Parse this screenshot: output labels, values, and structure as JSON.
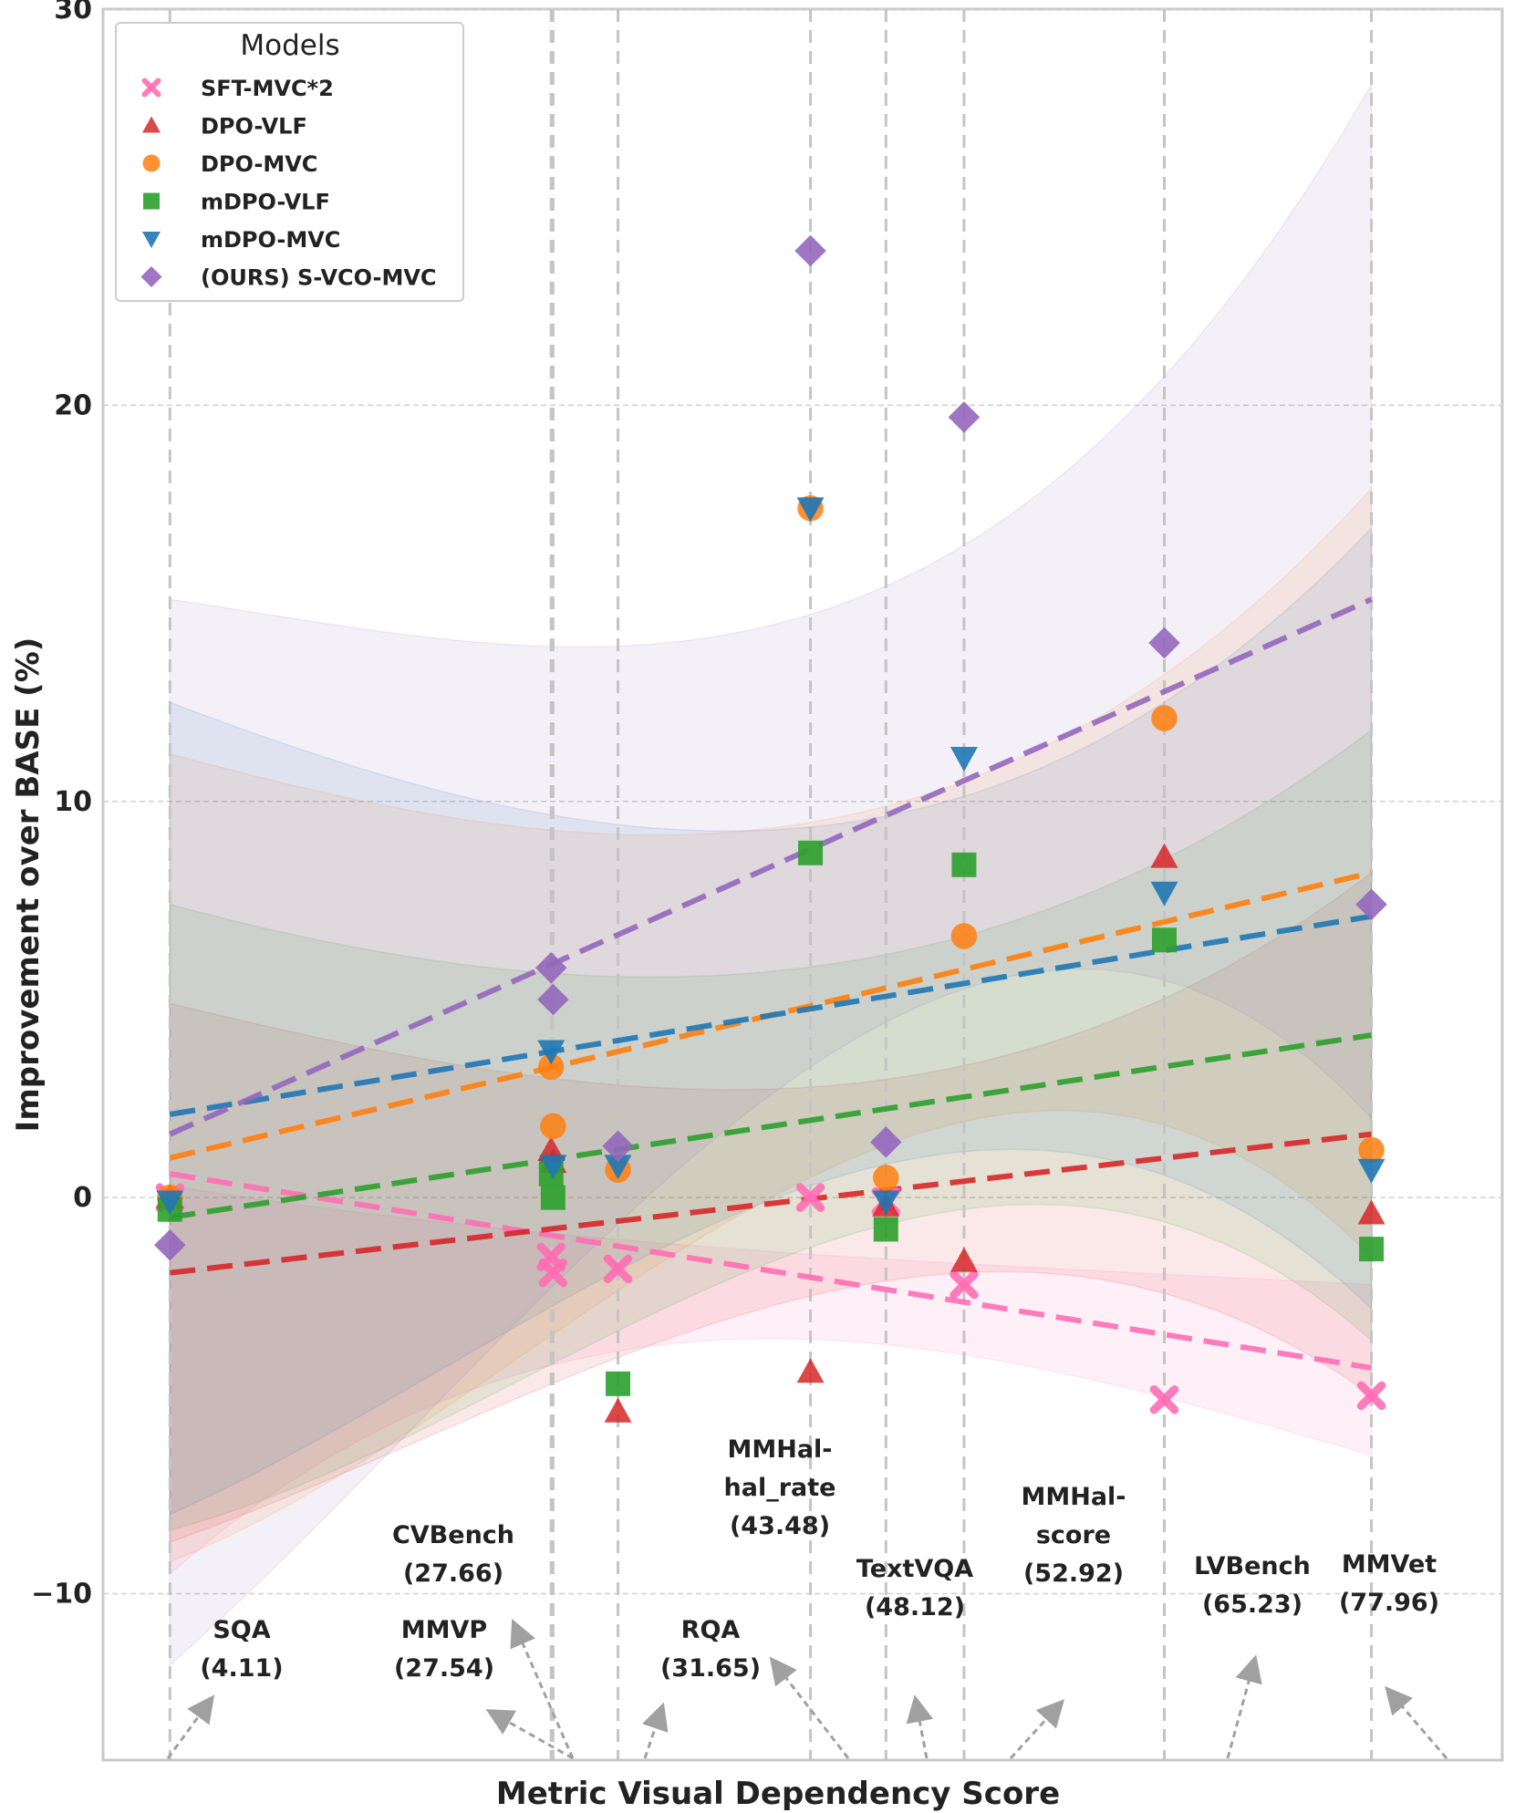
{
  "chart_data": {
    "type": "scatter",
    "xlabel": "Metric Visual Dependency Score",
    "ylabel": "Improvement over BASE (%)",
    "xlim": [
      0,
      86
    ],
    "ylim": [
      -14.2,
      30
    ],
    "yticks": [
      "30",
      "20",
      "10",
      "0",
      "−10"
    ],
    "ytick_values": [
      30,
      20,
      10,
      0,
      -10
    ],
    "grid": true,
    "legend_title": "Models",
    "legend_position": "top-left",
    "benchmarks": [
      {
        "lines": [
          "SQA",
          "(4.11)"
        ],
        "x": 4.11
      },
      {
        "lines": [
          "MMVP",
          "(27.54)"
        ],
        "x": 27.54
      },
      {
        "lines": [
          "CVBench",
          "(27.66)"
        ],
        "x": 27.66
      },
      {
        "lines": [
          "RQA",
          "(31.65)"
        ],
        "x": 31.65
      },
      {
        "lines": [
          "MMHal-",
          "hal_rate",
          "(43.48)"
        ],
        "x": 43.48
      },
      {
        "lines": [
          "TextVQA",
          "(48.12)"
        ],
        "x": 48.12
      },
      {
        "lines": [
          "MMHal-",
          "score",
          "(52.92)"
        ],
        "x": 52.92
      },
      {
        "lines": [
          "LVBench",
          "(65.23)"
        ],
        "x": 65.23
      },
      {
        "lines": [
          "MMVet",
          "(77.96)"
        ],
        "x": 77.96
      }
    ],
    "series": [
      {
        "name": "SFT-MVC*2",
        "marker": "x",
        "color": "#ff6eb4",
        "points": [
          [
            4.11,
            0.0
          ],
          [
            27.54,
            -1.5
          ],
          [
            27.66,
            -1.9
          ],
          [
            31.65,
            -1.8
          ],
          [
            43.48,
            0.0
          ],
          [
            48.12,
            -0.1
          ],
          [
            52.92,
            -2.2
          ],
          [
            65.23,
            -5.1
          ],
          [
            77.96,
            -5.0
          ]
        ],
        "trend": [
          0.6,
          -4.3
        ],
        "band_upper": [
          0.3,
          -1.0,
          -1.6,
          -2.2
        ],
        "band_lower": [
          -9.5,
          -4.0,
          -3.8,
          -6.5
        ]
      },
      {
        "name": "DPO-VLF",
        "marker": "triangle-up",
        "color": "#d62728",
        "points": [
          [
            4.11,
            0.0
          ],
          [
            27.54,
            1.2
          ],
          [
            27.66,
            0.9
          ],
          [
            31.65,
            -5.4
          ],
          [
            43.48,
            -4.4
          ],
          [
            48.12,
            -0.2
          ],
          [
            52.92,
            -1.6
          ],
          [
            65.23,
            8.6
          ],
          [
            77.96,
            -0.4
          ]
        ],
        "trend": [
          -1.9,
          1.6
        ],
        "band_upper": [
          4.9,
          2.9,
          3.1,
          8.2
        ],
        "band_lower": [
          -8.7,
          -4.3,
          -2.0,
          -5.0
        ]
      },
      {
        "name": "DPO-MVC",
        "marker": "circle",
        "color": "#ff7f0e",
        "points": [
          [
            4.11,
            0.0
          ],
          [
            27.54,
            3.3
          ],
          [
            27.66,
            1.8
          ],
          [
            31.65,
            0.7
          ],
          [
            43.48,
            17.4
          ],
          [
            48.12,
            0.5
          ],
          [
            52.92,
            6.6
          ],
          [
            65.23,
            12.1
          ],
          [
            77.96,
            1.2
          ]
        ],
        "trend": [
          1.0,
          8.2
        ],
        "band_upper": [
          11.2,
          9.2,
          10.1,
          17.9
        ],
        "band_lower": [
          -9.2,
          -2.8,
          1.6,
          -1.5
        ]
      },
      {
        "name": "mDPO-VLF",
        "marker": "square",
        "color": "#2ca02c",
        "points": [
          [
            4.11,
            -0.3
          ],
          [
            27.54,
            0.6
          ],
          [
            27.66,
            0.0
          ],
          [
            31.65,
            -4.7
          ],
          [
            43.48,
            8.7
          ],
          [
            48.12,
            -0.8
          ],
          [
            52.92,
            8.4
          ],
          [
            65.23,
            6.5
          ],
          [
            77.96,
            -1.3
          ]
        ],
        "trend": [
          -0.5,
          4.1
        ],
        "band_upper": [
          7.4,
          5.6,
          6.3,
          11.8
        ],
        "band_lower": [
          -8.4,
          -3.7,
          -0.5,
          -3.6
        ]
      },
      {
        "name": "mDPO-MVC",
        "marker": "triangle-down",
        "color": "#1f77b4",
        "points": [
          [
            4.11,
            -0.1
          ],
          [
            27.54,
            3.7
          ],
          [
            27.66,
            0.8
          ],
          [
            31.65,
            0.8
          ],
          [
            43.48,
            17.4
          ],
          [
            48.12,
            -0.1
          ],
          [
            52.92,
            11.1
          ],
          [
            65.23,
            7.7
          ],
          [
            77.96,
            0.7
          ]
        ],
        "trend": [
          2.1,
          7.1
        ],
        "band_upper": [
          12.5,
          9.5,
          9.8,
          16.9
        ],
        "band_lower": [
          -8.0,
          -2.2,
          1.0,
          -2.8
        ]
      },
      {
        "name": "(OURS) S-VCO-MVC",
        "marker": "diamond",
        "color": "#9467bd",
        "points": [
          [
            4.11,
            -1.2
          ],
          [
            27.54,
            5.8
          ],
          [
            27.66,
            5.0
          ],
          [
            31.65,
            1.3
          ],
          [
            43.48,
            23.9
          ],
          [
            48.12,
            1.4
          ],
          [
            52.92,
            19.7
          ],
          [
            65.23,
            14.0
          ],
          [
            77.96,
            7.4
          ]
        ],
        "trend": [
          1.6,
          15.1
        ],
        "band_upper": [
          15.1,
          13.9,
          15.8,
          28.1
        ],
        "band_lower": [
          -11.8,
          -1.3,
          4.8,
          2.0
        ]
      }
    ]
  }
}
